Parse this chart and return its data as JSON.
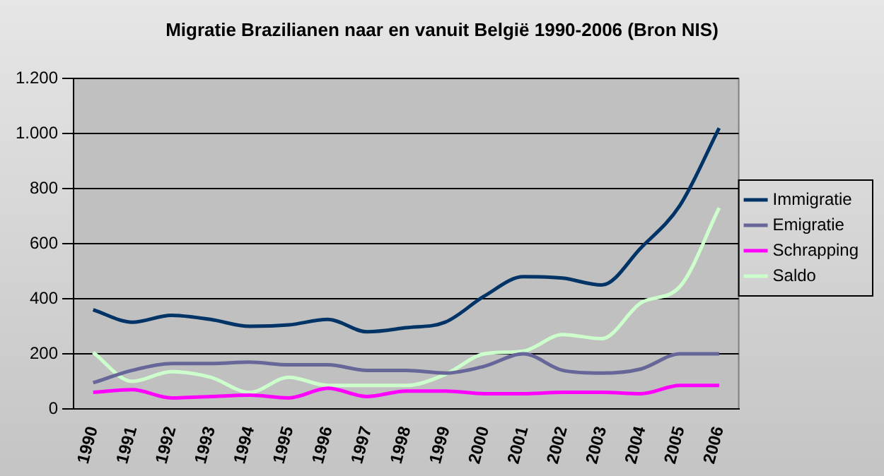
{
  "chart_data": {
    "type": "line",
    "title": "Migratie Brazilianen naar en vanuit België 1990-2006 (Bron NIS)",
    "categories": [
      "1990",
      "1991",
      "1992",
      "1993",
      "1994",
      "1995",
      "1996",
      "1997",
      "1998",
      "1999",
      "2000",
      "2001",
      "2002",
      "2003",
      "2004",
      "2005",
      "2006"
    ],
    "series": [
      {
        "name": "Immigratie",
        "color": "#003366",
        "values": [
          360,
          315,
          340,
          325,
          300,
          305,
          325,
          280,
          295,
          315,
          410,
          480,
          475,
          450,
          585,
          740,
          1020
        ]
      },
      {
        "name": "Emigratie",
        "color": "#666699",
        "values": [
          95,
          140,
          165,
          165,
          170,
          160,
          160,
          140,
          140,
          130,
          155,
          200,
          140,
          130,
          145,
          200,
          200
        ]
      },
      {
        "name": "Schrapping",
        "color": "#ff00ff",
        "values": [
          60,
          70,
          40,
          45,
          50,
          40,
          75,
          45,
          65,
          65,
          55,
          55,
          60,
          60,
          55,
          85,
          85
        ]
      },
      {
        "name": "Saldo",
        "color": "#ccffcc",
        "values": [
          205,
          100,
          135,
          115,
          60,
          115,
          85,
          85,
          85,
          125,
          200,
          210,
          270,
          255,
          385,
          445,
          730
        ]
      }
    ],
    "ylim": [
      0,
      1200
    ],
    "yticks": [
      0,
      200,
      400,
      600,
      800,
      {
        "value": 1000,
        "label": "1.000"
      },
      {
        "value": 1200,
        "label": "1.200"
      }
    ],
    "grid": "y",
    "legend": "right",
    "marker": "none",
    "line_style": "solid"
  }
}
